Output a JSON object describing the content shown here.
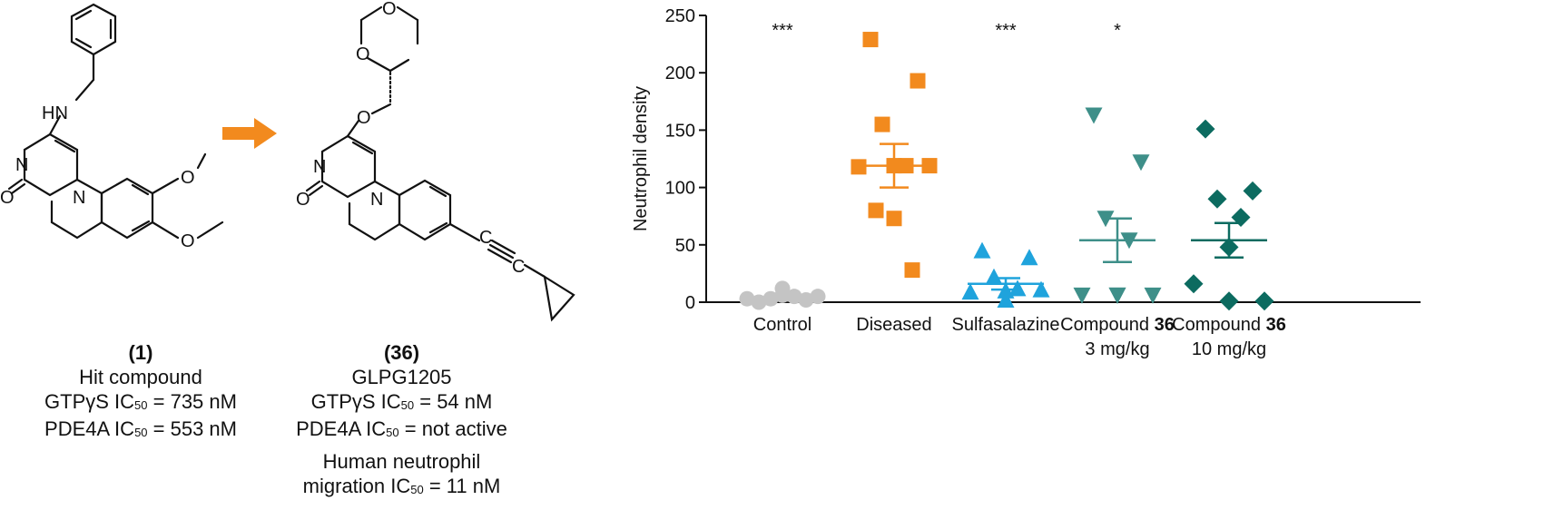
{
  "compound1": {
    "id_label": "(1)",
    "name": "Hit compound",
    "assay1_prefix": "GTPγS IC",
    "assay1_sub": "50",
    "assay1_value": " = 735 nM",
    "assay2_prefix": "PDE4A IC",
    "assay2_sub": "50",
    "assay2_value": " = 553 nM",
    "atoms": {
      "hn": "HN",
      "n1": "N",
      "o1": "O",
      "n2": "N"
    }
  },
  "compound36": {
    "id_label": "(36)",
    "name": "GLPG1205",
    "assay1_prefix": "GTPγS IC",
    "assay1_sub": "50",
    "assay1_value": " = 54 nM",
    "assay2_prefix": "PDE4A IC",
    "assay2_sub": "50",
    "assay2_value": " = not active",
    "assay3_line1": "Human neutrophil",
    "assay3_prefix": "migration IC",
    "assay3_sub": "50",
    "assay3_value": " = 11 nM",
    "atoms": {
      "o_ring1": "O",
      "o_ring2": "O",
      "o_link": "O",
      "n1": "N",
      "o1": "O",
      "n2": "N"
    }
  },
  "colors": {
    "arrow": "#F28A1E",
    "control": "#C4C4C4",
    "diseased": "#F28A1E",
    "sulfasalazine": "#1FA3DC",
    "compound36_3mg": "#3E8F89",
    "compound36_10mg": "#0C6B60",
    "axis": "#111111"
  },
  "chart_data": {
    "type": "scatter",
    "title": "",
    "xlabel": "",
    "ylabel": "Neutrophil density",
    "ylim": [
      0,
      250
    ],
    "yticks": [
      0,
      50,
      100,
      150,
      200,
      250
    ],
    "grid": false,
    "groups": [
      {
        "label": "Control",
        "label_bold": "",
        "label_line2": "",
        "marker": "circle",
        "color_key": "control",
        "significance": "***",
        "mean": 3,
        "sem": 1.5,
        "values": [
          0,
          2,
          3,
          5,
          6,
          3,
          5,
          12
        ]
      },
      {
        "label": "Diseased",
        "label_bold": "",
        "label_line2": "",
        "marker": "square",
        "color_key": "diseased",
        "significance": "",
        "mean": 119,
        "sem": 19,
        "values": [
          229,
          193,
          155,
          119,
          119,
          118,
          119,
          73,
          80,
          28
        ]
      },
      {
        "label": "Sulfasalazine",
        "label_bold": "",
        "label_line2": "",
        "marker": "triangle-up",
        "color_key": "sulfasalazine",
        "significance": "***",
        "mean": 16,
        "sem": 5,
        "values": [
          45,
          39,
          22,
          12,
          10,
          9,
          11,
          2
        ]
      },
      {
        "label": "Compound ",
        "label_bold": "36",
        "label_line2": "3 mg/kg",
        "marker": "triangle-down",
        "color_key": "compound36_3mg",
        "significance": "*",
        "mean": 54,
        "sem": 19,
        "values": [
          163,
          122,
          73,
          54,
          6,
          6,
          6,
          6
        ]
      },
      {
        "label": "Compound ",
        "label_bold": "36",
        "label_line2": "10 mg/kg",
        "marker": "diamond",
        "color_key": "compound36_10mg",
        "significance": "",
        "mean": 54,
        "sem": 15,
        "values": [
          151,
          97,
          90,
          74,
          48,
          16,
          1,
          1
        ]
      }
    ]
  }
}
